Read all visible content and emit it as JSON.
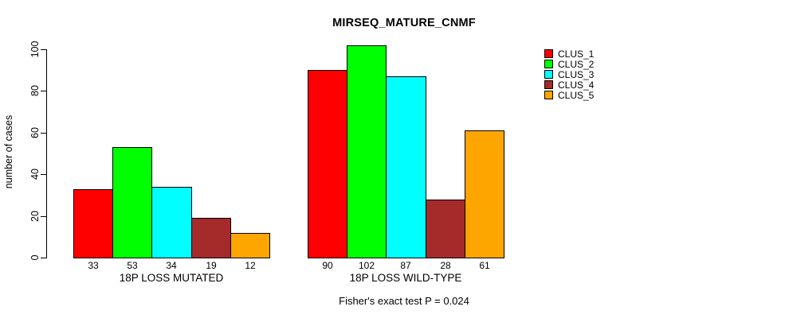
{
  "chart_data": {
    "type": "bar",
    "title": "MIRSEQ_MATURE_CNMF",
    "ylabel": "number of cases",
    "xlabel": "",
    "annotation": "Fisher's exact test P = 0.024",
    "categories": [
      "18P LOSS MUTATED",
      "18P LOSS WILD-TYPE"
    ],
    "series": [
      {
        "name": "CLUS_1",
        "color": "#ff0000",
        "values": [
          33,
          90
        ]
      },
      {
        "name": "CLUS_2",
        "color": "#00ff00",
        "values": [
          53,
          102
        ]
      },
      {
        "name": "CLUS_3",
        "color": "#00ffff",
        "values": [
          34,
          87
        ]
      },
      {
        "name": "CLUS_4",
        "color": "#a52a2a",
        "values": [
          19,
          28
        ]
      },
      {
        "name": "CLUS_5",
        "color": "#ffa500",
        "values": [
          12,
          61
        ]
      }
    ],
    "bar_value_labels": [
      [
        "33",
        "53",
        "34",
        "19",
        "12"
      ],
      [
        "90",
        "102",
        "87",
        "28",
        "61"
      ]
    ],
    "yticks": [
      0,
      20,
      40,
      60,
      80,
      100
    ],
    "ylim": [
      0,
      105
    ],
    "grid": false,
    "legend_position": "right",
    "axis_color": "#000000",
    "bar_border_color": "#000000"
  }
}
